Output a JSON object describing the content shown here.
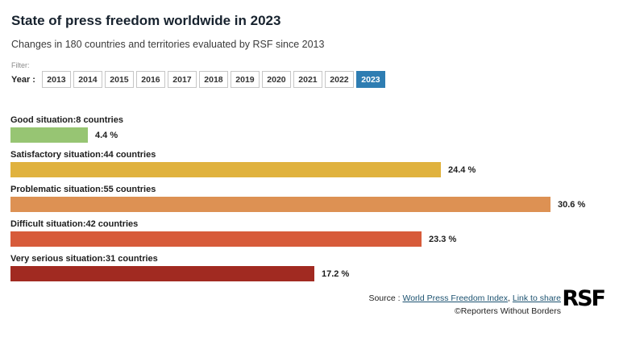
{
  "header": {
    "title": "State of press freedom worldwide in 2023",
    "subtitle": "Changes in 180 countries and territories evaluated by RSF since 2013"
  },
  "filter": {
    "label": "Filter:",
    "year_label": "Year :",
    "years": [
      "2013",
      "2014",
      "2015",
      "2016",
      "2017",
      "2018",
      "2019",
      "2020",
      "2021",
      "2022",
      "2023"
    ],
    "selected_year": "2023",
    "selected_color": "#2e7db2"
  },
  "chart_data": {
    "type": "bar",
    "orientation": "horizontal",
    "title": "State of press freedom worldwide in 2023",
    "categories": [
      "Good situation:8 countries",
      "Satisfactory situation:44 countries",
      "Problematic situation:55 countries",
      "Difficult situation:42 countries",
      "Very serious situation:31 countries"
    ],
    "values": [
      4.4,
      24.4,
      30.6,
      23.3,
      17.2
    ],
    "value_labels": [
      "4.4 %",
      "24.4 %",
      "30.6 %",
      "23.3 %",
      "17.2 %"
    ],
    "colors": [
      "#97c573",
      "#e0b23e",
      "#dd9153",
      "#d75b3a",
      "#a12a21"
    ],
    "xlim": [
      0,
      30.6
    ],
    "grid": false,
    "legend": false
  },
  "footer": {
    "source_label": "Source : ",
    "source_link": "World Press Freedom Index",
    "separator": ", ",
    "share_link": "Link to share",
    "copyright": "©Reporters Without Borders",
    "logo": "RSF"
  }
}
